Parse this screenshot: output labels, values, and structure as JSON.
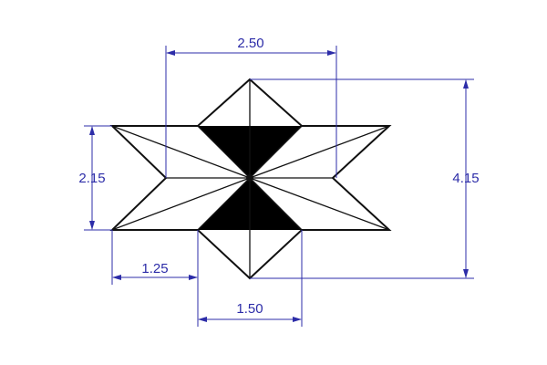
{
  "dimensions": {
    "top_width": "2.50",
    "left_height": "2.15",
    "right_height": "4.15",
    "bottom_left_offset": "1.25",
    "bottom_width": "1.50"
  },
  "colors": {
    "geometry": "#111111",
    "dimension": "#2c2ca8",
    "background": "#ffffff"
  }
}
